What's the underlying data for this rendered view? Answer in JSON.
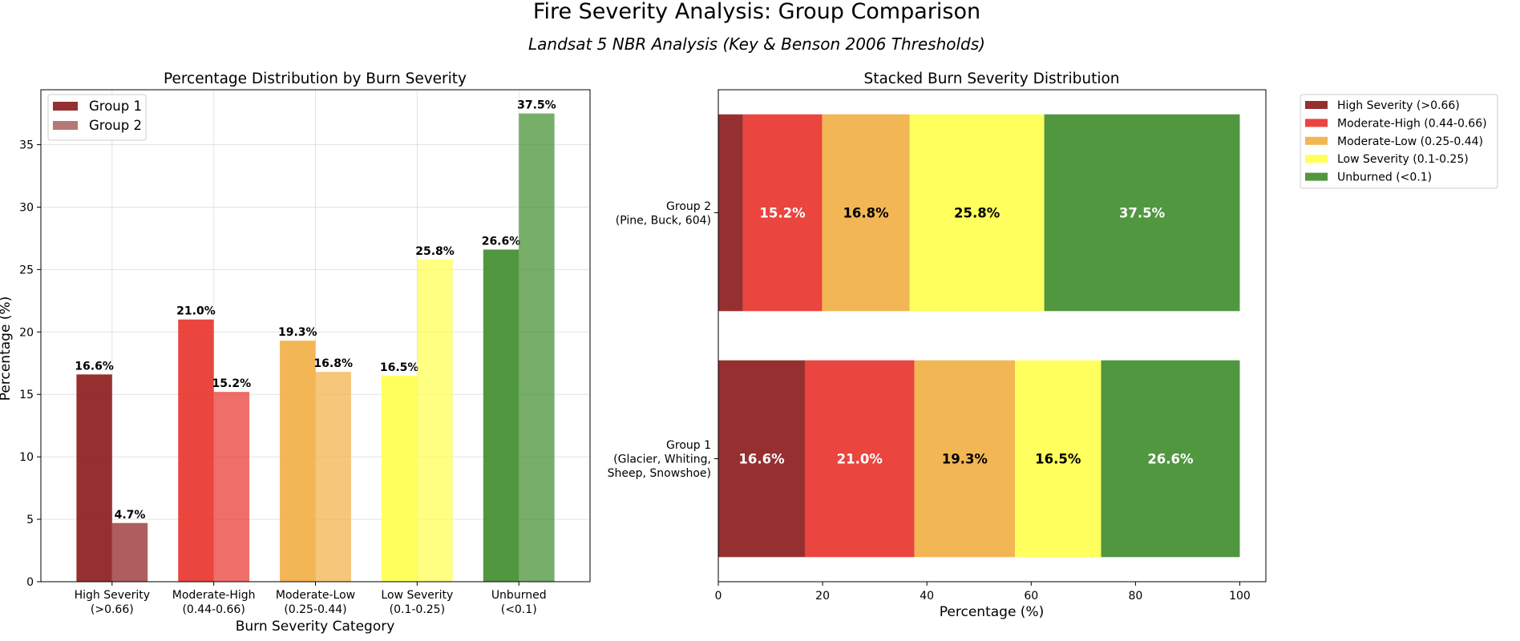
{
  "suptitle": "Fire Severity Analysis: Group Comparison",
  "subtitle": "Landsat 5 NBR Analysis (Key & Benson 2006 Thresholds)",
  "colors": {
    "high": "#8b1a1a",
    "moderate_high": "#e8312a",
    "moderate_low": "#f2ae42",
    "low": "#ffff4d",
    "unburned": "#3d8c2a"
  },
  "chart_data": [
    {
      "type": "bar",
      "title": "Percentage Distribution by Burn Severity",
      "xlabel": "Burn Severity Category",
      "ylabel": "Percentage (%)",
      "categories": [
        "High Severity\n(>0.66)",
        "Moderate-High\n(0.44-0.66)",
        "Moderate-Low\n(0.25-0.44)",
        "Low Severity\n(0.1-0.25)",
        "Unburned\n(<0.1)"
      ],
      "series": [
        {
          "name": "Group 1",
          "values": [
            16.6,
            21.0,
            19.3,
            16.5,
            26.6
          ]
        },
        {
          "name": "Group 2",
          "values": [
            4.7,
            15.2,
            16.8,
            25.8,
            37.5
          ]
        }
      ],
      "ylim": [
        0,
        39.4
      ],
      "yticks": [
        0,
        5,
        10,
        15,
        20,
        25,
        30,
        35
      ],
      "grid": true,
      "legend": "upper-left"
    },
    {
      "type": "bar",
      "orientation": "horizontal",
      "stacked": true,
      "title": "Stacked Burn Severity Distribution",
      "xlabel": "Percentage (%)",
      "ylabel": "",
      "categories": [
        "Group 1\n(Glacier, Whiting,\nSheep, Snowshoe)",
        "Group 2\n(Pine, Buck, 604)"
      ],
      "series": [
        {
          "name": "High Severity (>0.66)",
          "values": [
            16.6,
            4.7
          ]
        },
        {
          "name": "Moderate-High (0.44-0.66)",
          "values": [
            21.0,
            15.2
          ]
        },
        {
          "name": "Moderate-Low (0.25-0.44)",
          "values": [
            19.3,
            16.8
          ]
        },
        {
          "name": "Low Severity (0.1-0.25)",
          "values": [
            16.5,
            25.8
          ]
        },
        {
          "name": "Unburned (<0.1)",
          "values": [
            26.6,
            37.5
          ]
        }
      ],
      "xlim": [
        0,
        105
      ],
      "xticks": [
        0,
        20,
        40,
        60,
        80,
        100
      ],
      "grid": false,
      "legend": "outside-upper-right"
    }
  ]
}
